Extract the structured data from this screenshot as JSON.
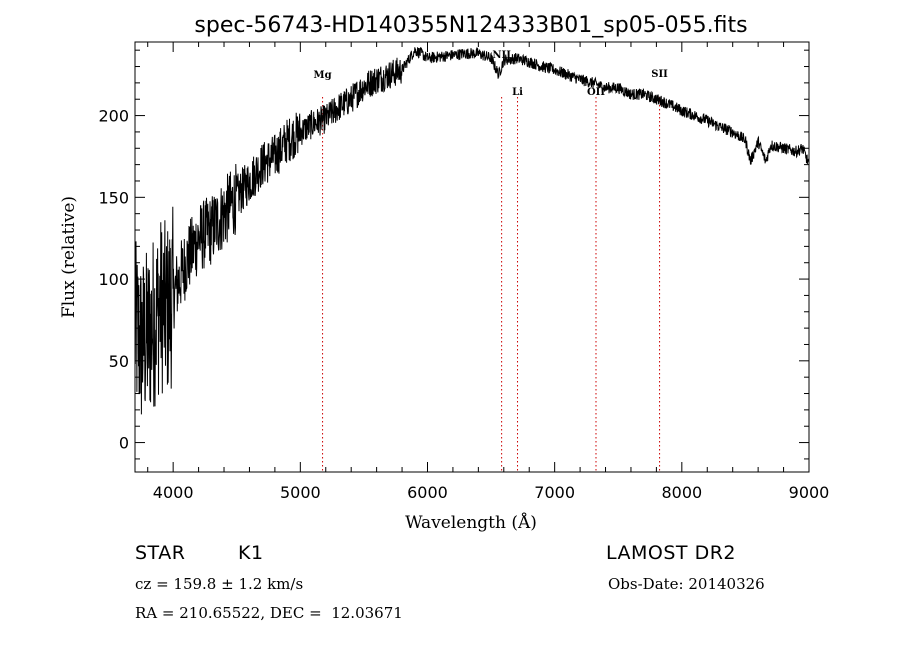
{
  "chart_data": {
    "type": "line",
    "title": "spec-56743-HD140355N124333B01_sp05-055.fits",
    "xlabel": "Wavelength (Å)",
    "ylabel": "Flux (relative)",
    "xlim": [
      3700,
      9000
    ],
    "ylim": [
      -18,
      245
    ],
    "xticks": [
      4000,
      5000,
      6000,
      7000,
      8000,
      9000
    ],
    "yticks": [
      0,
      50,
      100,
      150,
      200
    ],
    "grid": false,
    "line_color": "#000000",
    "series": [
      {
        "x": [
          3700,
          3750,
          3800,
          3850,
          3900,
          3950,
          4000,
          4100,
          4200,
          4300,
          4400,
          4500,
          4600,
          4700,
          4800,
          4900,
          5000,
          5100,
          5200,
          5300,
          5400,
          5500,
          5600,
          5700,
          5800,
          5900,
          5950,
          6000,
          6100,
          6200,
          6300,
          6400,
          6500,
          6560,
          6600,
          6700,
          6800,
          6900,
          7000,
          7100,
          7200,
          7300,
          7400,
          7500,
          7600,
          7700,
          7800,
          7900,
          8000,
          8100,
          8200,
          8300,
          8400,
          8500,
          8540,
          8600,
          8660,
          8700,
          8800,
          8900,
          8950,
          9000
        ],
        "y": [
          70,
          60,
          65,
          75,
          85,
          80,
          90,
          110,
          125,
          130,
          140,
          150,
          160,
          170,
          175,
          185,
          190,
          195,
          198,
          205,
          210,
          218,
          222,
          225,
          228,
          240,
          238,
          235,
          236,
          237,
          238,
          238,
          235,
          225,
          234,
          235,
          233,
          230,
          228,
          225,
          222,
          220,
          217,
          217,
          213,
          213,
          210,
          207,
          203,
          200,
          197,
          193,
          190,
          185,
          172,
          184,
          172,
          182,
          180,
          178,
          180,
          170
        ]
      }
    ],
    "lines": [
      {
        "label": "Mg",
        "x": 5175
      },
      {
        "label": "NII",
        "x": 6583
      },
      {
        "label": "Li",
        "x": 6708
      },
      {
        "label": "OII",
        "x": 7325
      },
      {
        "label": "SII",
        "x": 7825
      }
    ],
    "line_style_color": "#cc0000"
  },
  "info": {
    "object_type": "STAR",
    "subclass": "K1",
    "survey": "LAMOST DR2",
    "cz": "cz = 159.8 ± 1.2 km/s",
    "obs_date": "Obs-Date: 20140326",
    "coords": "RA = 210.65522, DEC =  12.03671"
  }
}
